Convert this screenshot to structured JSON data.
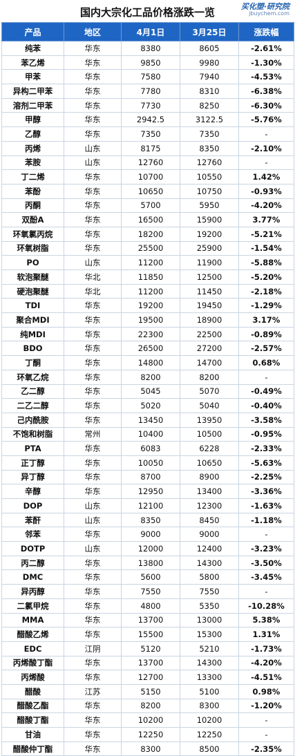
{
  "title": "国内大宗化工品价格涨跌一览",
  "brand": {
    "name": "买化塑·研究院",
    "url": "jbuychem.com"
  },
  "colors": {
    "header_bg": "#1f66c4",
    "up": "#e8141b",
    "down": "#1e9e3a"
  },
  "headers": [
    "产品",
    "地区",
    "4月1日",
    "3月25日",
    "涨跌幅"
  ],
  "rows": [
    [
      "纯苯",
      "华东",
      "8380",
      "8605",
      "-2.61%"
    ],
    [
      "苯乙烯",
      "华东",
      "9850",
      "9980",
      "-1.30%"
    ],
    [
      "甲苯",
      "华东",
      "7580",
      "7940",
      "-4.53%"
    ],
    [
      "异构二甲苯",
      "华东",
      "7780",
      "8310",
      "-6.38%"
    ],
    [
      "溶剂二甲苯",
      "华东",
      "7730",
      "8250",
      "-6.30%"
    ],
    [
      "甲醇",
      "华东",
      "2942.5",
      "3122.5",
      "-5.76%"
    ],
    [
      "乙醇",
      "华东",
      "7350",
      "7350",
      "-"
    ],
    [
      "丙烯",
      "山东",
      "8175",
      "8350",
      "-2.10%"
    ],
    [
      "苯胺",
      "山东",
      "12760",
      "12760",
      "-"
    ],
    [
      "丁二烯",
      "华东",
      "10700",
      "10550",
      "1.42%"
    ],
    [
      "苯酚",
      "华东",
      "10650",
      "10750",
      "-0.93%"
    ],
    [
      "丙酮",
      "华东",
      "5700",
      "5950",
      "-4.20%"
    ],
    [
      "双酚A",
      "华东",
      "16500",
      "15900",
      "3.77%"
    ],
    [
      "环氧氯丙烷",
      "华东",
      "18200",
      "19200",
      "-5.21%"
    ],
    [
      "环氧树脂",
      "华东",
      "25500",
      "25900",
      "-1.54%"
    ],
    [
      "PO",
      "山东",
      "11200",
      "11900",
      "-5.88%"
    ],
    [
      "软泡聚醚",
      "华北",
      "11850",
      "12500",
      "-5.20%"
    ],
    [
      "硬泡聚醚",
      "华北",
      "11200",
      "11450",
      "-2.18%"
    ],
    [
      "TDI",
      "华东",
      "19200",
      "19450",
      "-1.29%"
    ],
    [
      "聚合MDI",
      "华东",
      "19500",
      "18900",
      "3.17%"
    ],
    [
      "纯MDI",
      "华东",
      "22300",
      "22500",
      "-0.89%"
    ],
    [
      "BDO",
      "华东",
      "26500",
      "27200",
      "-2.57%"
    ],
    [
      "丁酮",
      "华东",
      "14800",
      "14700",
      "0.68%"
    ],
    [
      "环氧乙烷",
      "华东",
      "8200",
      "8200",
      "-"
    ],
    [
      "乙二醇",
      "华东",
      "5045",
      "5070",
      "-0.49%"
    ],
    [
      "二乙二醇",
      "华东",
      "5020",
      "5040",
      "-0.40%"
    ],
    [
      "己内酰胺",
      "华东",
      "13450",
      "13950",
      "-3.58%"
    ],
    [
      "不饱和树脂",
      "常州",
      "10400",
      "10500",
      "-0.95%"
    ],
    [
      "PTA",
      "华东",
      "6083",
      "6228",
      "-2.33%"
    ],
    [
      "正丁醇",
      "华东",
      "10050",
      "10650",
      "-5.63%"
    ],
    [
      "异丁醇",
      "华东",
      "8700",
      "8900",
      "-2.25%"
    ],
    [
      "辛醇",
      "华东",
      "12950",
      "13400",
      "-3.36%"
    ],
    [
      "DOP",
      "山东",
      "12100",
      "12300",
      "-1.63%"
    ],
    [
      "苯酐",
      "山东",
      "8350",
      "8450",
      "-1.18%"
    ],
    [
      "邻苯",
      "华东",
      "9000",
      "9000",
      "-"
    ],
    [
      "DOTP",
      "山东",
      "12000",
      "12400",
      "-3.23%"
    ],
    [
      "丙二醇",
      "华东",
      "13800",
      "14300",
      "-3.50%"
    ],
    [
      "DMC",
      "华东",
      "5600",
      "5800",
      "-3.45%"
    ],
    [
      "异丙醇",
      "华东",
      "7550",
      "7550",
      "-"
    ],
    [
      "二氯甲烷",
      "华东",
      "4800",
      "5350",
      "-10.28%"
    ],
    [
      "MMA",
      "华东",
      "13700",
      "13000",
      "5.38%"
    ],
    [
      "醋酸乙烯",
      "华东",
      "15500",
      "15300",
      "1.31%"
    ],
    [
      "EDC",
      "江阴",
      "5120",
      "5210",
      "-1.73%"
    ],
    [
      "丙烯酸丁酯",
      "华东",
      "13700",
      "14300",
      "-4.20%"
    ],
    [
      "丙烯酸",
      "华东",
      "12700",
      "13300",
      "-4.51%"
    ],
    [
      "醋酸",
      "江苏",
      "5150",
      "5100",
      "0.98%"
    ],
    [
      "醋酸乙酯",
      "华东",
      "8200",
      "8300",
      "-1.20%"
    ],
    [
      "醋酸丁酯",
      "华东",
      "10200",
      "10200",
      "-"
    ],
    [
      "甘油",
      "华东",
      "12250",
      "12250",
      "-"
    ],
    [
      "醋酸仲丁酯",
      "华东",
      "8300",
      "8500",
      "-2.35%"
    ]
  ]
}
